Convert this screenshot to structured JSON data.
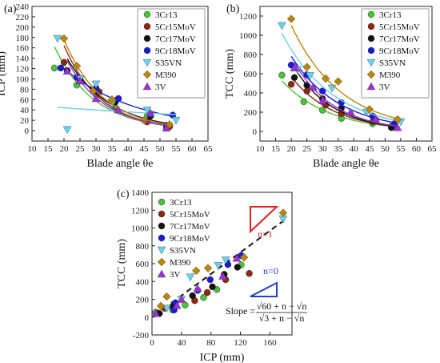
{
  "colors": {
    "3Cr13": "#4cc23a",
    "5Cr15MoV": "#8b2a0c",
    "7Cr17MoV": "#111111",
    "9Cr18MoV": "#1a1ad6",
    "S35VN": "#66d2f0",
    "M390": "#b8860b",
    "3V": "#9b30d9",
    "n1_triangle": "#e02020",
    "n0_triangle": "#2040d0"
  },
  "chart_data": [
    {
      "panel": "(a)",
      "type": "scatter",
      "xlabel": "Blade angle θe",
      "ylabel": "ICP (mm)",
      "xlim": [
        10,
        65
      ],
      "ylim": [
        -20,
        240
      ],
      "xticks": [
        10,
        15,
        20,
        25,
        30,
        35,
        40,
        45,
        50,
        55,
        60,
        65
      ],
      "yticks": [
        0,
        20,
        40,
        60,
        80,
        100,
        120,
        140,
        160,
        180,
        200,
        220,
        240
      ],
      "legend_position": "top-right",
      "series": [
        {
          "name": "3Cr13",
          "marker": "circle",
          "x": [
            17,
            24,
            30,
            36,
            46,
            52
          ],
          "y": [
            121,
            88,
            70,
            45,
            28,
            5
          ]
        },
        {
          "name": "5Cr15MoV",
          "marker": "circle",
          "x": [
            20,
            25,
            31,
            36,
            46,
            53
          ],
          "y": [
            132,
            100,
            75,
            58,
            17,
            8
          ]
        },
        {
          "name": "7Cr17MoV",
          "marker": "circle",
          "x": [
            21,
            25,
            30,
            36,
            47,
            52
          ],
          "y": [
            116,
            98,
            82,
            55,
            28,
            10
          ]
        },
        {
          "name": "9Cr18MoV",
          "marker": "circle",
          "x": [
            19,
            24,
            30,
            37,
            47,
            54
          ],
          "y": [
            121,
            103,
            79,
            62,
            32,
            30
          ]
        },
        {
          "name": "S35VN",
          "marker": "triangle-down",
          "x": [
            18,
            21,
            25,
            30,
            35,
            46,
            55
          ],
          "y": [
            178,
            2,
            100,
            90,
            52,
            40,
            20
          ]
        },
        {
          "name": "M390",
          "marker": "diamond",
          "x": [
            20,
            24,
            29,
            35,
            45,
            53
          ],
          "y": [
            178,
            125,
            76,
            60,
            20,
            12
          ]
        },
        {
          "name": "3V",
          "marker": "triangle-up",
          "x": [
            21,
            25,
            30,
            37,
            47,
            52
          ],
          "y": [
            115,
            96,
            62,
            40,
            34,
            5
          ]
        }
      ]
    },
    {
      "panel": "(b)",
      "type": "scatter",
      "xlabel": "Blade angle θe",
      "ylabel": "TCC (mm)",
      "xlim": [
        10,
        65
      ],
      "ylim": [
        -100,
        1300
      ],
      "xticks": [
        10,
        15,
        20,
        25,
        30,
        35,
        40,
        45,
        50,
        55,
        60,
        65
      ],
      "yticks": [
        0,
        200,
        400,
        600,
        800,
        1000,
        1200
      ],
      "legend_position": "top-right",
      "series": [
        {
          "name": "3Cr13",
          "marker": "circle",
          "x": [
            17,
            24,
            30,
            36,
            46,
            52
          ],
          "y": [
            585,
            310,
            220,
            135,
            80,
            55
          ]
        },
        {
          "name": "5Cr15MoV",
          "marker": "circle",
          "x": [
            20,
            25,
            31,
            36,
            46,
            53
          ],
          "y": [
            490,
            420,
            275,
            185,
            100,
            45
          ]
        },
        {
          "name": "7Cr17MoV",
          "marker": "circle",
          "x": [
            21,
            25,
            30,
            36,
            47,
            52
          ],
          "y": [
            560,
            480,
            340,
            240,
            120,
            40
          ]
        },
        {
          "name": "9Cr18MoV",
          "marker": "circle",
          "x": [
            20,
            25,
            30,
            36,
            46,
            53
          ],
          "y": [
            690,
            590,
            420,
            300,
            160,
            80
          ]
        },
        {
          "name": "S35VN",
          "marker": "triangle-down",
          "x": [
            17,
            22,
            26,
            33,
            44,
            55
          ],
          "y": [
            1100,
            640,
            580,
            450,
            200,
            100
          ]
        },
        {
          "name": "M390",
          "marker": "diamond",
          "x": [
            20,
            25,
            31,
            35,
            45,
            54
          ],
          "y": [
            1170,
            670,
            550,
            520,
            230,
            125
          ]
        },
        {
          "name": "3V",
          "marker": "triangle-up",
          "x": [
            21,
            27,
            30,
            39,
            47,
            54
          ],
          "y": [
            660,
            460,
            320,
            200,
            130,
            40
          ]
        }
      ]
    },
    {
      "panel": "(c)",
      "type": "scatter",
      "xlabel": "ICP (mm)",
      "ylabel": "TCC (mm)",
      "xlim": [
        0,
        190
      ],
      "ylim": [
        -200,
        1400
      ],
      "xticks": [
        0,
        40,
        80,
        120,
        160
      ],
      "yticks": [
        -200,
        0,
        200,
        400,
        600,
        800,
        1000,
        1200,
        1400
      ],
      "legend_position": "top-left",
      "fit_line": {
        "x": [
          5,
          180
        ],
        "y": [
          30,
          1090
        ]
      },
      "annotations": {
        "n1": "n=1",
        "n0": "n=0",
        "slope_label": "Slope ="
      },
      "series": [
        {
          "name": "3Cr13",
          "marker": "circle",
          "x": [
            5,
            28,
            45,
            70,
            88,
            121
          ],
          "y": [
            55,
            80,
            135,
            220,
            310,
            585
          ]
        },
        {
          "name": "5Cr15MoV",
          "marker": "circle",
          "x": [
            8,
            17,
            58,
            75,
            100,
            132
          ],
          "y": [
            45,
            100,
            185,
            275,
            420,
            490
          ]
        },
        {
          "name": "7Cr17MoV",
          "marker": "circle",
          "x": [
            10,
            28,
            55,
            82,
            98,
            116
          ],
          "y": [
            40,
            120,
            240,
            340,
            480,
            560
          ]
        },
        {
          "name": "9Cr18MoV",
          "marker": "circle",
          "x": [
            30,
            32,
            62,
            79,
            103,
            121
          ],
          "y": [
            80,
            160,
            300,
            420,
            590,
            690
          ]
        },
        {
          "name": "S35VN",
          "marker": "triangle-down",
          "x": [
            20,
            40,
            52,
            90,
            100,
            178
          ],
          "y": [
            100,
            200,
            450,
            580,
            640,
            1100
          ]
        },
        {
          "name": "M390",
          "marker": "diamond",
          "x": [
            12,
            20,
            60,
            76,
            125,
            178
          ],
          "y": [
            125,
            230,
            520,
            550,
            670,
            1170
          ]
        },
        {
          "name": "3V",
          "marker": "triangle-up",
          "x": [
            5,
            34,
            40,
            62,
            96,
            115
          ],
          "y": [
            40,
            130,
            200,
            320,
            460,
            660
          ]
        }
      ]
    }
  ]
}
